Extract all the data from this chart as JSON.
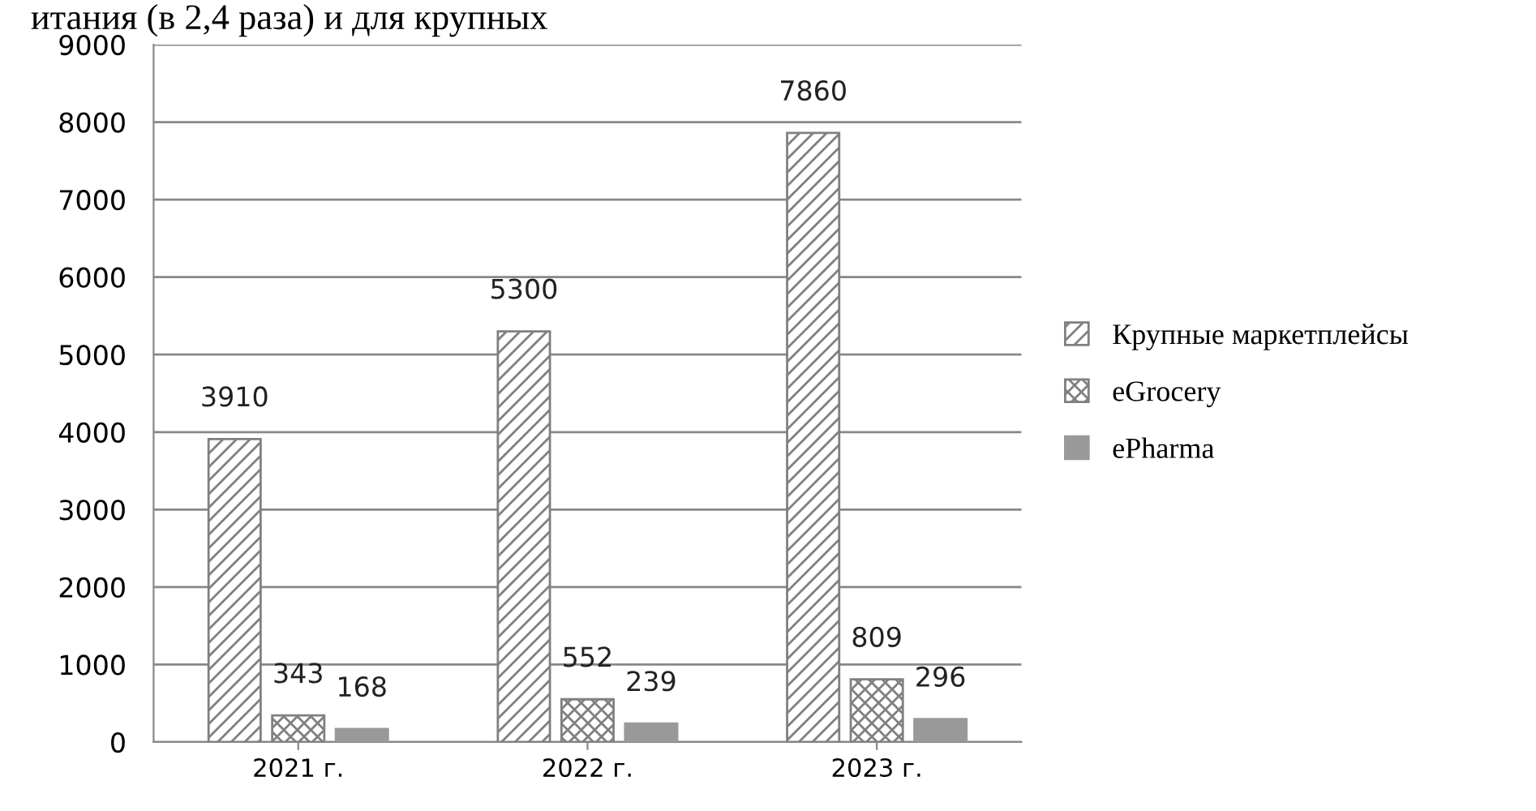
{
  "chart_data": {
    "type": "bar",
    "annotations": [
      "итания (в 2,4 раза) и для крупных"
    ],
    "categories": [
      "2021 г.",
      "2022 г.",
      "2023 г."
    ],
    "series": [
      {
        "name": "Крупные маркетплейсы",
        "color": "#808080",
        "values": [
          3910,
          5300,
          7860
        ]
      },
      {
        "name": "eGrocery",
        "color": "#808080",
        "values": [
          343,
          552,
          809
        ]
      },
      {
        "name": "ePharma",
        "color": "#999999",
        "values": [
          168,
          239,
          296
        ]
      }
    ],
    "ylim": [
      0,
      9000
    ],
    "yticks": [
      0,
      1000,
      2000,
      3000,
      4000,
      5000,
      6000,
      7000,
      8000,
      9000
    ],
    "grid": "y",
    "legend": "right",
    "data_labels": true
  }
}
